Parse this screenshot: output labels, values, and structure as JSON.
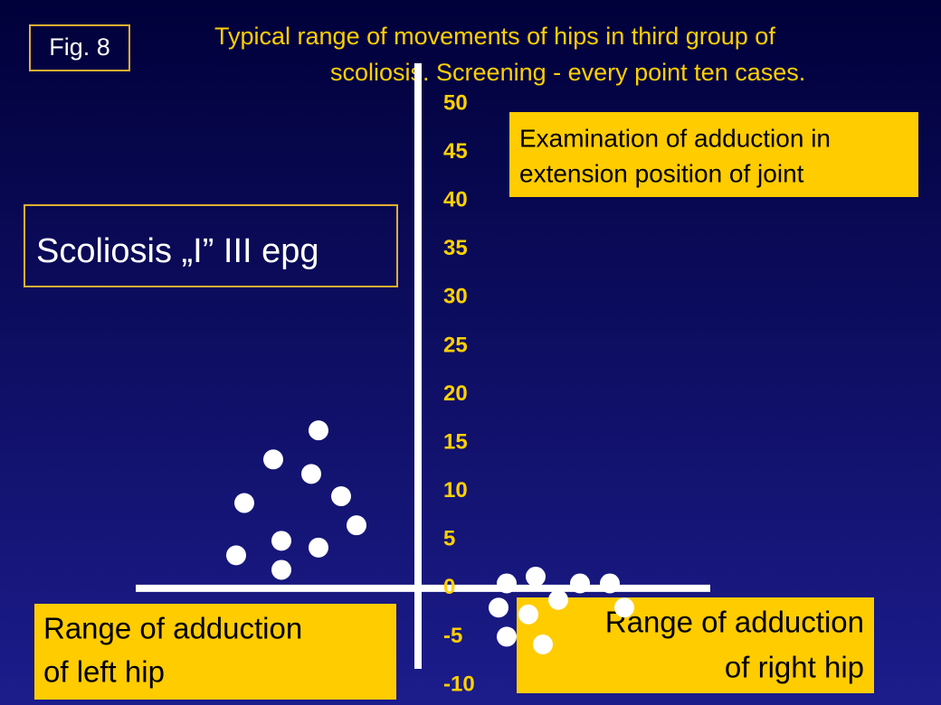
{
  "chart_data": {
    "type": "scatter",
    "figure_label": "Fig. 8",
    "title": [
      "Typical range of movements of hips in third group of",
      "scoliosis. Screening - every point ten cases."
    ],
    "annotations": {
      "examination": [
        "Examination of adduction in",
        "extension position of joint"
      ],
      "group": "Scoliosis „I” III epg",
      "left": [
        "Range of adduction",
        "of left hip"
      ],
      "right": [
        "Range of adduction",
        "of right hip"
      ]
    },
    "x": [
      -11,
      -16,
      -11.8,
      -19.2,
      -8.5,
      -6.8,
      -15.1,
      -11,
      -20.1,
      -15.1,
      9.8,
      13,
      17.9,
      21.2,
      8.9,
      15.5,
      22.8,
      12.2,
      9.8,
      13.8
    ],
    "values": [
      16.3,
      13.3,
      11.8,
      8.8,
      9.5,
      6.5,
      4.9,
      4.2,
      3.4,
      1.9,
      0.5,
      1.2,
      0.5,
      0.5,
      -2,
      -1.2,
      -2,
      -2.7,
      -5,
      -5.8
    ],
    "color": "#ffffff",
    "xlim": [
      -31.2,
      32.3
    ],
    "ylim": [
      -10,
      50
    ],
    "yticks": [
      50,
      45,
      40,
      35,
      30,
      25,
      20,
      15,
      10,
      5,
      0,
      -5,
      -10
    ],
    "grid": false
  }
}
